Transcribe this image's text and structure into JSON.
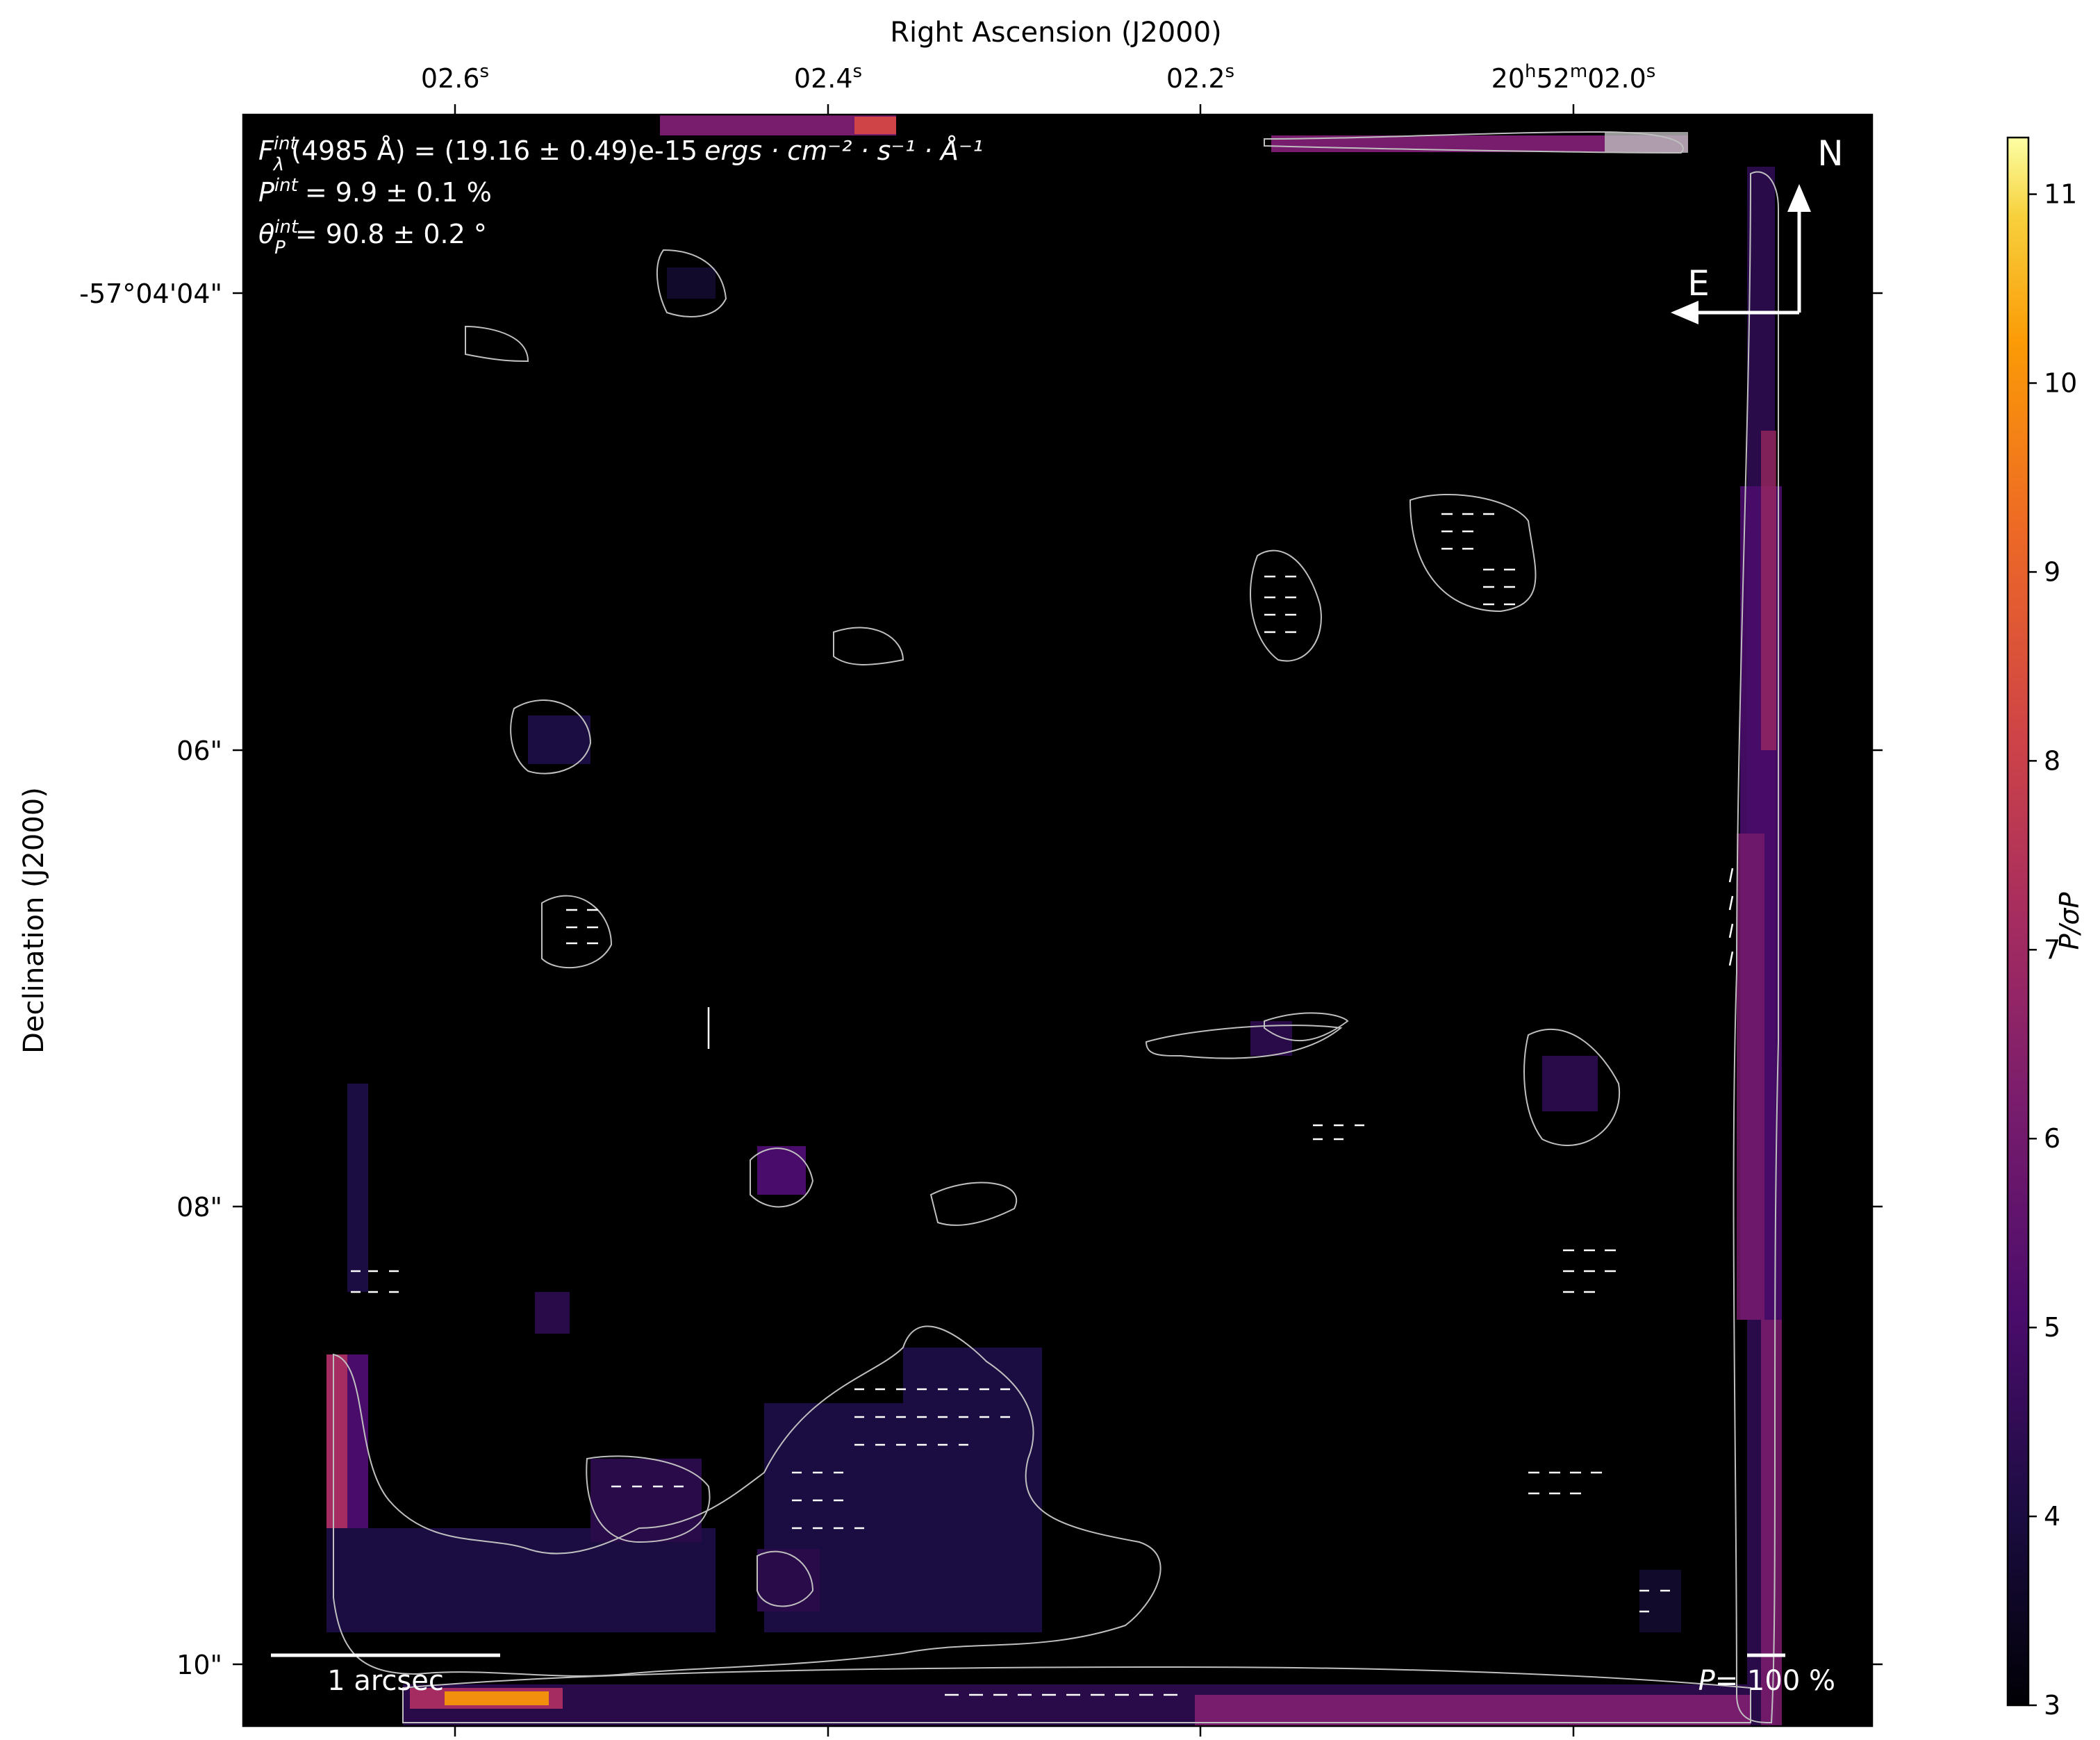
{
  "chart_data": {
    "type": "heatmap",
    "title": "",
    "xlabel": "Right Ascension (J2000)",
    "ylabel": "Declination (J2000)",
    "x_ticks": [
      {
        "main": "02.6",
        "sup": "s",
        "value": 2.6
      },
      {
        "main": "02.4",
        "sup": "s",
        "value": 2.4
      },
      {
        "main": "02.2",
        "sup": "s",
        "value": 2.2
      },
      {
        "main": "20",
        "sup": "h",
        "main2": "52",
        "sup2": "m",
        "main3": "02.0",
        "sup3": "s",
        "value": 2.0
      }
    ],
    "x_ticks_text": [
      "02.6s",
      "02.4s",
      "02.2s",
      "20h52m02.0s"
    ],
    "y_ticks": [
      "-57°04'04\"",
      "06\"",
      "08\"",
      "10\""
    ],
    "y_tick_values": [
      4,
      6,
      8,
      10
    ],
    "ra_range_s": [
      2.715,
      1.842
    ],
    "dec_range_arcsec": [
      3.21,
      10.3
    ],
    "colorbar": {
      "label": "P/σP",
      "colormap": "inferno",
      "range": [
        3,
        11.3
      ],
      "ticks": [
        "3",
        "4",
        "5",
        "6",
        "7",
        "8",
        "9",
        "10",
        "11"
      ],
      "tick_values": [
        3,
        4,
        5,
        6,
        7,
        8,
        9,
        10,
        11
      ]
    },
    "annotations": {
      "flux": "(4985 Å) = (19.16 ± 0.49)e-15",
      "flux_units": "ergs · cm⁻² · s⁻¹ · Å⁻¹",
      "pol_degree": "= 9.9 ± 0.1 %",
      "pol_angle": "= 90.8 ± 0.2 °",
      "north": "N",
      "east": "E",
      "scale_label": "1 arcsec",
      "vector_scale_label": "= 100 %",
      "vector_scale_symbol": "P"
    },
    "contour_color": "#bfbfbf",
    "background_color": "#000000",
    "vector_color": "#ffffff"
  }
}
